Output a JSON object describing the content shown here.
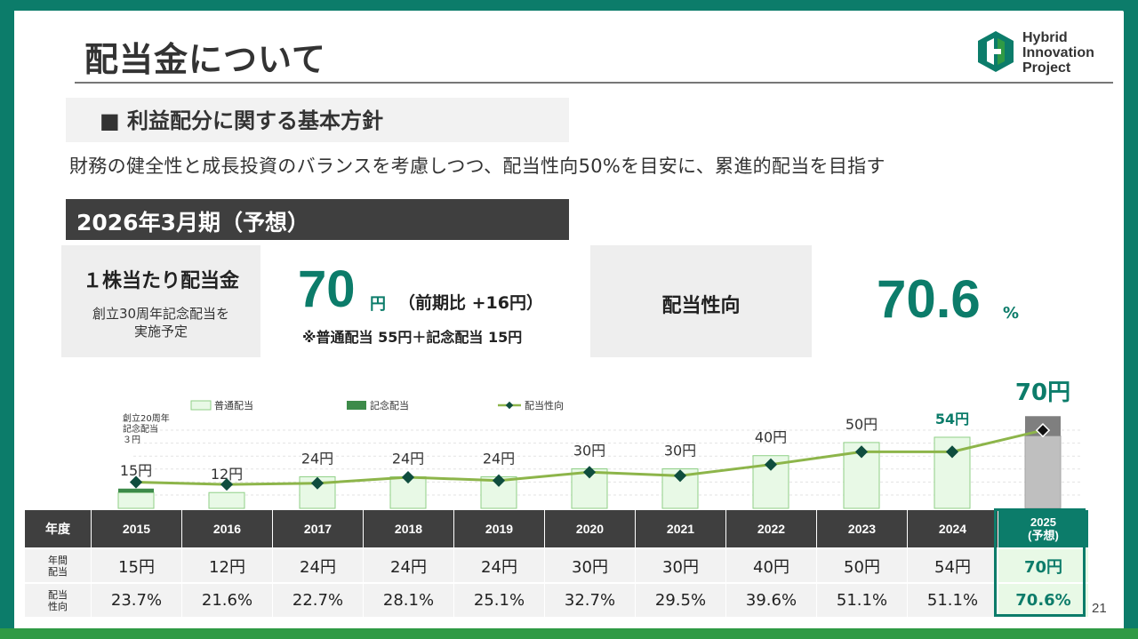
{
  "page": {
    "title": "配当金について",
    "logo_line1": "Hybrid",
    "logo_line2": "Innovation",
    "logo_line3": "Project",
    "page_number": "21"
  },
  "policy": {
    "heading": "■ 利益配分に関する基本方針",
    "text": "財務の健全性と成長投資のバランスを考慮しつつ、配当性向50%を目安に、累進的配当を目指す"
  },
  "forecast": {
    "period_title": "2026年3月期（予想）",
    "dps_label": "１株当たり配当金",
    "dps_note": "創立30周年記念配当を\n実施予定",
    "dps_value": "70",
    "dps_unit": "円",
    "dps_prev": "（前期比 +16円）",
    "dps_breakdown": "※普通配当 55円＋記念配当 15円",
    "payout_label": "配当性向",
    "payout_value": "70.6",
    "payout_unit": "%"
  },
  "colors": {
    "accent": "#0c7c6a",
    "ordinary_fill": "#e8f9e6",
    "ordinary_stroke": "#8fcf86",
    "commemorative": "#3d8b4a",
    "line": "#8db54a",
    "marker": "#0f4d3e",
    "forecast_bar": "#bfbfbf",
    "forecast_top": "#7f7f7f"
  },
  "chart_data": {
    "type": "bar",
    "categories": [
      "2015",
      "2016",
      "2017",
      "2018",
      "2019",
      "2020",
      "2021",
      "2022",
      "2023",
      "2024",
      "2025"
    ],
    "series": [
      {
        "name": "普通配当",
        "values": [
          12,
          12,
          24,
          24,
          24,
          30,
          30,
          40,
          50,
          54,
          55
        ]
      },
      {
        "name": "記念配当",
        "values": [
          3,
          0,
          0,
          0,
          0,
          0,
          0,
          0,
          0,
          0,
          15
        ]
      },
      {
        "name": "配当性向",
        "values": [
          23.7,
          21.6,
          22.7,
          28.1,
          25.1,
          32.7,
          29.5,
          39.6,
          51.1,
          51.1,
          70.6
        ]
      }
    ],
    "bar_labels": [
      "15円",
      "12円",
      "24円",
      "24円",
      "24円",
      "30円",
      "30円",
      "40円",
      "50円",
      "54円",
      "70円"
    ],
    "annotation": "創立20周年\n記念配当\n３円",
    "legend_placement": "top"
  },
  "table": {
    "year_header": "年度",
    "years": [
      "2015",
      "2016",
      "2017",
      "2018",
      "2019",
      "2020",
      "2021",
      "2022",
      "2023",
      "2024",
      "2025\n(予想)"
    ],
    "dps_header": "年間\n配当",
    "dps": [
      "15円",
      "12円",
      "24円",
      "24円",
      "24円",
      "30円",
      "30円",
      "40円",
      "50円",
      "54円",
      "70円"
    ],
    "payout_header": "配当\n性向",
    "payout": [
      "23.7%",
      "21.6%",
      "22.7%",
      "28.1%",
      "25.1%",
      "32.7%",
      "29.5%",
      "39.6%",
      "51.1%",
      "51.1%",
      "70.6%"
    ]
  }
}
